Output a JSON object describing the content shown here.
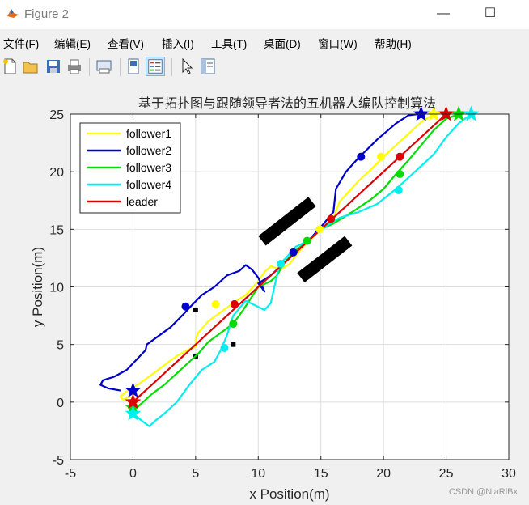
{
  "window": {
    "title": "Figure 2",
    "minimize": "—",
    "maximize": "☐"
  },
  "menu": [
    "文件(F)",
    "编辑(E)",
    "查看(V)",
    "插入(I)",
    "工具(T)",
    "桌面(D)",
    "窗口(W)",
    "帮助(H)"
  ],
  "toolbar": [
    "new-figure",
    "open-file",
    "save",
    "print",
    "print-preview",
    "toggle-plot-browser",
    "toggle-legend",
    "pointer",
    "property-editor"
  ],
  "watermark": "CSDN @NiaRlBx",
  "chart_data": {
    "type": "line",
    "title": "基于拓扑图与跟随领导者法的五机器人编队控制算法",
    "xlabel": "x Position(m)",
    "ylabel": "y Position(m)",
    "xlim": [
      -5,
      30
    ],
    "ylim": [
      -5,
      25
    ],
    "xticks": [
      -5,
      0,
      5,
      10,
      15,
      20,
      25,
      30
    ],
    "yticks": [
      -5,
      0,
      5,
      10,
      15,
      20,
      25
    ],
    "grid": true,
    "legend_position": "top-left",
    "series": [
      {
        "name": "follower1",
        "color": "#ffff00",
        "x": [
          -0.2,
          -0.8,
          -1.0,
          -0.4,
          0.5,
          1.5,
          2.5,
          3.5,
          4.5,
          5.0,
          5.0,
          5.2,
          6.0,
          7.0,
          8.0,
          9.0,
          10.0,
          10.5,
          11.0,
          11.8,
          12.5,
          13.5,
          15.0,
          16.0,
          16.5,
          17.0,
          18.0,
          19.0,
          20.0,
          21.0,
          22.0,
          23.0,
          24.0
        ],
        "y": [
          0.5,
          0.2,
          0.5,
          1.0,
          1.6,
          2.4,
          3.2,
          4.0,
          4.6,
          4.8,
          5.5,
          6.0,
          7.0,
          7.8,
          8.6,
          9.3,
          10.5,
          11.3,
          11.8,
          11.5,
          12.0,
          13.4,
          15.0,
          16.0,
          17.4,
          18.0,
          19.2,
          20.2,
          21.3,
          22.3,
          23.3,
          24.3,
          25.0
        ],
        "markers": [
          {
            "x": 6.6,
            "y": 8.5
          },
          {
            "x": 14.9,
            "y": 15.0
          },
          {
            "x": 19.8,
            "y": 21.3
          }
        ],
        "start": {
          "x": 0,
          "y": 0
        },
        "end": {
          "x": 24.0,
          "y": 25.0
        }
      },
      {
        "name": "follower2",
        "color": "#0000cc",
        "x": [
          -1.0,
          -2.0,
          -2.6,
          -2.4,
          -1.5,
          -0.5,
          1.0,
          1.1,
          3.0,
          4.0,
          4.6,
          5.5,
          6.5,
          7.5,
          8.5,
          9.0,
          9.5,
          10.0,
          10.5,
          10.3,
          10.0,
          11.0,
          12.0,
          13.0,
          14.0,
          15.0,
          16.0,
          16.2,
          17.0,
          18.0,
          19.5,
          21.0,
          22.0,
          22.8
        ],
        "y": [
          1.0,
          1.2,
          1.5,
          1.9,
          2.2,
          2.8,
          4.5,
          5.0,
          6.5,
          7.6,
          8.3,
          9.3,
          10.0,
          11.0,
          11.4,
          11.9,
          11.5,
          10.8,
          9.6,
          9.9,
          10.3,
          11.0,
          12.0,
          13.0,
          14.0,
          15.2,
          16.5,
          18.5,
          20.0,
          21.2,
          22.8,
          24.2,
          24.9,
          25.0
        ],
        "markers": [
          {
            "x": 4.2,
            "y": 8.3
          },
          {
            "x": 12.8,
            "y": 13.0
          },
          {
            "x": 18.2,
            "y": 21.3
          }
        ],
        "start": {
          "x": 0,
          "y": 1.0
        },
        "end": {
          "x": 23.0,
          "y": 25.0
        }
      },
      {
        "name": "follower3",
        "color": "#00dd00",
        "x": [
          0.0,
          -0.1,
          0.5,
          1.5,
          2.5,
          3.5,
          4.5,
          5.2,
          6.0,
          7.0,
          8.0,
          8.8,
          10.0,
          11.0,
          11.5,
          12.0,
          13.0,
          14.0,
          15.0,
          16.0,
          17.5,
          19.0,
          20.0,
          21.0,
          22.0,
          23.0,
          24.0,
          25.0,
          26.0
        ],
        "y": [
          -0.5,
          -0.2,
          -0.3,
          0.7,
          1.5,
          2.5,
          3.5,
          4.2,
          5.2,
          6.0,
          6.8,
          8.0,
          10.0,
          10.5,
          11.0,
          12.0,
          13.2,
          14.0,
          15.0,
          15.5,
          16.5,
          17.6,
          18.5,
          19.8,
          21.0,
          22.3,
          23.6,
          24.6,
          25.0
        ],
        "markers": [
          {
            "x": 8.0,
            "y": 6.8
          },
          {
            "x": 13.9,
            "y": 14.0
          },
          {
            "x": 21.3,
            "y": 19.8
          }
        ],
        "start": {
          "x": 0,
          "y": -0.5
        },
        "end": {
          "x": 26.0,
          "y": 25.0
        }
      },
      {
        "name": "follower4",
        "color": "#00eeee",
        "x": [
          0.0,
          0.8,
          1.3,
          1.8,
          2.5,
          3.5,
          4.5,
          5.5,
          6.5,
          7.0,
          7.5,
          8.0,
          9.0,
          10.5,
          11.0,
          11.7,
          12.2,
          13.0,
          14.0,
          15.0,
          16.5,
          18.0,
          19.5,
          21.0,
          22.5,
          24.0,
          25.0,
          26.0,
          27.0
        ],
        "y": [
          -1.0,
          -1.7,
          -2.1,
          -1.6,
          -1.0,
          0.0,
          1.5,
          2.8,
          3.5,
          4.5,
          5.8,
          7.5,
          8.8,
          8.0,
          8.6,
          12.0,
          12.5,
          13.5,
          14.0,
          15.0,
          16.0,
          16.5,
          17.2,
          18.5,
          20.0,
          21.5,
          23.0,
          24.2,
          25.0
        ],
        "markers": [
          {
            "x": 7.3,
            "y": 4.7
          },
          {
            "x": 11.8,
            "y": 12.0
          },
          {
            "x": 21.2,
            "y": 18.4
          }
        ],
        "start": {
          "x": 0,
          "y": -1.0
        },
        "end": {
          "x": 27.0,
          "y": 25.0
        }
      },
      {
        "name": "leader",
        "color": "#dd0000",
        "x": [
          0.0,
          1.0,
          2.0,
          3.0,
          4.0,
          5.0,
          6.0,
          7.0,
          8.0,
          9.0,
          10.0,
          11.0,
          12.0,
          13.0,
          14.0,
          15.0,
          16.0,
          17.0,
          18.0,
          19.0,
          20.0,
          21.0,
          22.0,
          23.0,
          24.0,
          25.0
        ],
        "y": [
          0.0,
          1.0,
          2.0,
          3.0,
          4.0,
          5.0,
          6.0,
          7.0,
          8.0,
          9.0,
          10.0,
          11.0,
          12.0,
          13.0,
          14.0,
          15.0,
          16.0,
          17.0,
          18.0,
          19.0,
          20.0,
          21.0,
          22.0,
          23.0,
          24.0,
          25.0
        ],
        "markers": [
          {
            "x": 8.1,
            "y": 8.5
          },
          {
            "x": 15.8,
            "y": 15.9
          },
          {
            "x": 21.3,
            "y": 21.3
          }
        ],
        "start": {
          "x": 0,
          "y": 0
        },
        "end": {
          "x": 25.0,
          "y": 25.0
        }
      }
    ],
    "obstacles_point": [
      {
        "x": 5.0,
        "y": 8.0
      },
      {
        "x": 5.0,
        "y": 4.0
      },
      {
        "x": 8.0,
        "y": 5.0
      }
    ],
    "obstacles_wall": [
      {
        "x1": 10.3,
        "y1": 14.0,
        "x2": 14.3,
        "y2": 17.4
      },
      {
        "x1": 13.4,
        "y1": 10.8,
        "x2": 17.2,
        "y2": 14.0
      }
    ]
  }
}
